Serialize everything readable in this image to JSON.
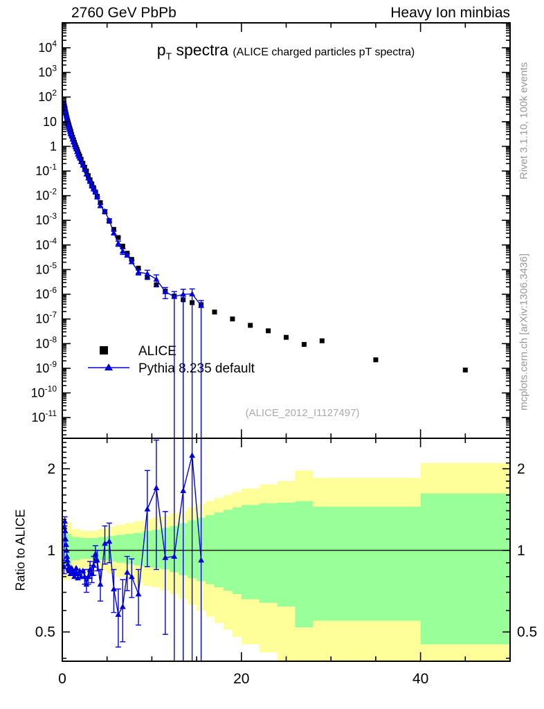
{
  "header": {
    "left": "2760 GeV PbPb",
    "right": "Heavy Ion minbias"
  },
  "side_notes": {
    "top_right": "Rivet 3.1.10,  100k events",
    "bottom_right": "mcplots.cern.ch [arXiv:1306.3436]"
  },
  "chart_data": {
    "type": "line",
    "title": {
      "main": "p",
      "sub": "T",
      "rest": " spectra ",
      "paren": "(ALICE charged particles pT spectra)"
    },
    "watermark": "(ALICE_2012_I1127497)",
    "legend": [
      {
        "label": "ALICE",
        "marker": "square",
        "color": "#000000"
      },
      {
        "label": "Pythia 8.235 default",
        "marker": "triangle-line",
        "color": "#0000dd"
      }
    ],
    "x": {
      "min": 0,
      "max": 50,
      "major_ticks": [
        0,
        20,
        40
      ],
      "minor_step": 5
    },
    "y_main": {
      "scale": "log",
      "top_exp": 5.01,
      "bottom_exp": -11.84,
      "label_exp_max": 4,
      "label_exp_min": -11
    },
    "y_ratio": {
      "scale": "log",
      "top": 2.59,
      "bottom": 0.39,
      "major_ticks": [
        2,
        1,
        0.5
      ],
      "minor_from": 0.4,
      "minor_to": 2.5,
      "minor_step": 0.1,
      "label": "Ratio to ALICE",
      "unity_line": 1
    },
    "alice": {
      "pt": [
        0.175,
        0.225,
        0.275,
        0.325,
        0.375,
        0.425,
        0.475,
        0.525,
        0.575,
        0.625,
        0.675,
        0.725,
        0.775,
        0.825,
        0.875,
        0.925,
        0.975,
        1.05,
        1.15,
        1.25,
        1.35,
        1.45,
        1.55,
        1.65,
        1.75,
        1.85,
        1.95,
        2.1,
        2.3,
        2.5,
        2.7,
        2.9,
        3.1,
        3.3,
        3.5,
        3.7,
        3.9,
        4.25,
        4.75,
        5.25,
        5.75,
        6.25,
        6.75,
        7.25,
        7.75,
        8.5,
        9.5,
        10.5,
        11.5,
        12.5,
        13.5,
        14.5,
        15.5,
        17,
        19,
        21,
        23,
        25,
        27,
        29,
        35,
        45
      ],
      "y": [
        57,
        45,
        36,
        29,
        24,
        20,
        16.5,
        14,
        11.8,
        10,
        8.6,
        7.4,
        6.4,
        5.5,
        4.8,
        4.2,
        3.7,
        3.0,
        2.35,
        1.85,
        1.45,
        1.15,
        0.92,
        0.74,
        0.6,
        0.49,
        0.4,
        0.3,
        0.205,
        0.143,
        0.1,
        0.065,
        0.044,
        0.03,
        0.021,
        0.0142,
        0.0095,
        0.0052,
        0.0022,
        0.00092,
        0.00043,
        0.0002,
        9e-05,
        4.6e-05,
        2.6e-05,
        1.15e-05,
        4.8e-06,
        2.4e-06,
        1.35e-06,
        8.5e-07,
        6e-07,
        4.6e-07,
        3.8e-07,
        1.9e-07,
        1e-07,
        5.5e-08,
        3.3e-08,
        1.8e-08,
        9.3e-09,
        1.3e-08,
        2.2e-09,
        8.5e-10
      ]
    },
    "pythia": {
      "pt": [
        0.175,
        0.225,
        0.275,
        0.325,
        0.375,
        0.425,
        0.475,
        0.525,
        0.575,
        0.625,
        0.675,
        0.725,
        0.775,
        0.825,
        0.875,
        0.925,
        0.975,
        1.05,
        1.15,
        1.25,
        1.35,
        1.45,
        1.55,
        1.65,
        1.75,
        1.85,
        1.95,
        2.1,
        2.3,
        2.5,
        2.7,
        2.9,
        3.1,
        3.3,
        3.5,
        3.7,
        3.9,
        4.25,
        4.75,
        5.25,
        5.75,
        6.25,
        6.75,
        7.25,
        7.75,
        8.5,
        9.5,
        10.5,
        11.5,
        12.5,
        13.5,
        14.5,
        15.5
      ],
      "ratio": [
        0.87,
        1.22,
        1.28,
        1.18,
        1.1,
        1.05,
        1.0,
        0.95,
        0.92,
        0.89,
        0.86,
        0.85,
        0.84,
        0.86,
        0.84,
        0.82,
        0.85,
        0.86,
        0.84,
        0.82,
        0.8,
        0.83,
        0.86,
        0.82,
        0.79,
        0.82,
        0.84,
        0.8,
        0.84,
        0.8,
        0.75,
        0.8,
        0.85,
        0.82,
        0.88,
        0.97,
        0.92,
        0.75,
        1.06,
        1.08,
        0.72,
        0.58,
        0.62,
        0.83,
        0.8,
        0.69,
        1.42,
        1.7,
        0.94,
        0.95,
        1.66,
        2.24,
        0.92
      ],
      "err": [
        0.05,
        0.05,
        0.05,
        0.04,
        0.03,
        0.03,
        0.03,
        0.03,
        0.03,
        0.03,
        0.03,
        0.03,
        0.03,
        0.03,
        0.03,
        0.03,
        0.03,
        0.03,
        0.03,
        0.03,
        0.03,
        0.03,
        0.03,
        0.03,
        0.03,
        0.03,
        0.03,
        0.04,
        0.04,
        0.05,
        0.05,
        0.05,
        0.06,
        0.06,
        0.07,
        0.07,
        0.08,
        0.1,
        0.17,
        0.18,
        0.13,
        0.14,
        0.16,
        0.12,
        0.13,
        0.16,
        0.55,
        0.85,
        0.45,
        9,
        9,
        9,
        9
      ]
    },
    "bands": {
      "edges": [
        0,
        1,
        2,
        3,
        4,
        5,
        6,
        7,
        8,
        9,
        10,
        11,
        12,
        13,
        14,
        15,
        16,
        17,
        18,
        19,
        20,
        22,
        24,
        26,
        28,
        40,
        50
      ],
      "yellow_lo": [
        0.78,
        0.84,
        0.86,
        0.86,
        0.84,
        0.82,
        0.8,
        0.78,
        0.76,
        0.74,
        0.73,
        0.71,
        0.69,
        0.66,
        0.63,
        0.6,
        0.57,
        0.54,
        0.51,
        0.48,
        0.45,
        0.42,
        0.3,
        0.28,
        0.3,
        0.3
      ],
      "yellow_hi": [
        1.27,
        1.2,
        1.18,
        1.18,
        1.2,
        1.22,
        1.24,
        1.26,
        1.28,
        1.3,
        1.32,
        1.34,
        1.37,
        1.4,
        1.44,
        1.48,
        1.52,
        1.56,
        1.6,
        1.64,
        1.69,
        1.75,
        1.8,
        1.97,
        1.85,
        2.1
      ],
      "green_lo": [
        0.88,
        0.92,
        0.93,
        0.93,
        0.92,
        0.91,
        0.9,
        0.89,
        0.88,
        0.87,
        0.86,
        0.85,
        0.83,
        0.81,
        0.79,
        0.77,
        0.75,
        0.73,
        0.71,
        0.69,
        0.66,
        0.64,
        0.62,
        0.52,
        0.55,
        0.45
      ],
      "green_hi": [
        1.15,
        1.12,
        1.11,
        1.11,
        1.12,
        1.13,
        1.14,
        1.15,
        1.16,
        1.18,
        1.19,
        1.21,
        1.23,
        1.26,
        1.29,
        1.32,
        1.35,
        1.38,
        1.41,
        1.44,
        1.47,
        1.49,
        1.5,
        1.52,
        1.45,
        1.62
      ]
    },
    "colors": {
      "alice": "#000000",
      "pythia": "#0000dd",
      "band_outer": "#ffff99",
      "band_inner": "#99ff99",
      "frame": "#000000",
      "note_gray": "#999999",
      "watermark_gray": "#aaaaaa"
    }
  }
}
